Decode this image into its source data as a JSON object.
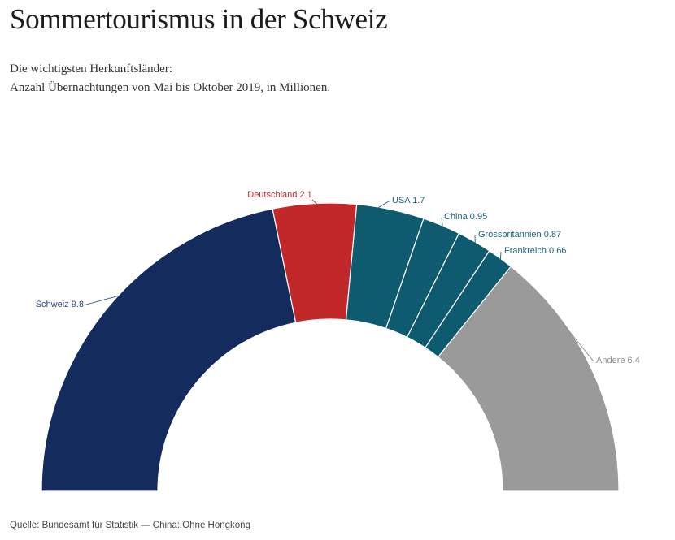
{
  "title": "Sommertourismus in der Schweiz",
  "subtitle_line1": "Die wichtigsten Herkunftsländer:",
  "subtitle_line2": "Anzahl Übernachtungen von Mai bis Oktober 2019, in Millionen.",
  "source": "Quelle: Bundesamt für Statistik — China: Ohne Hongkong",
  "chart_data": {
    "type": "pie",
    "variant": "half-donut",
    "legend": "none",
    "slices": [
      {
        "label": "Schweiz",
        "value": 9.8,
        "display": "Schweiz 9.8",
        "color": "#142b5e"
      },
      {
        "label": "Deutschland",
        "value": 2.1,
        "display": "Deutschland 2.1",
        "color": "#c0282a"
      },
      {
        "label": "USA",
        "value": 1.7,
        "display": "USA 1.7",
        "color": "#0e5a6e"
      },
      {
        "label": "China",
        "value": 0.95,
        "display": "China 0.95",
        "color": "#0e5a6e"
      },
      {
        "label": "Grossbritannien",
        "value": 0.87,
        "display": "Grossbritannien 0.87",
        "color": "#0e5a6e"
      },
      {
        "label": "Frankreich",
        "value": 0.66,
        "display": "Frankreich 0.66",
        "color": "#0e5a6e"
      },
      {
        "label": "Andere",
        "value": 6.4,
        "display": "Andere 6.4",
        "color": "#9a9a9a"
      }
    ],
    "label_colors": {
      "Schweiz": "#2f4a86",
      "Deutschland": "#c0282a",
      "USA": "#1a6478",
      "China": "#1a6478",
      "Grossbritannien": "#1a6478",
      "Frankreich": "#1a6478",
      "Andere": "#8a8a8a"
    }
  }
}
